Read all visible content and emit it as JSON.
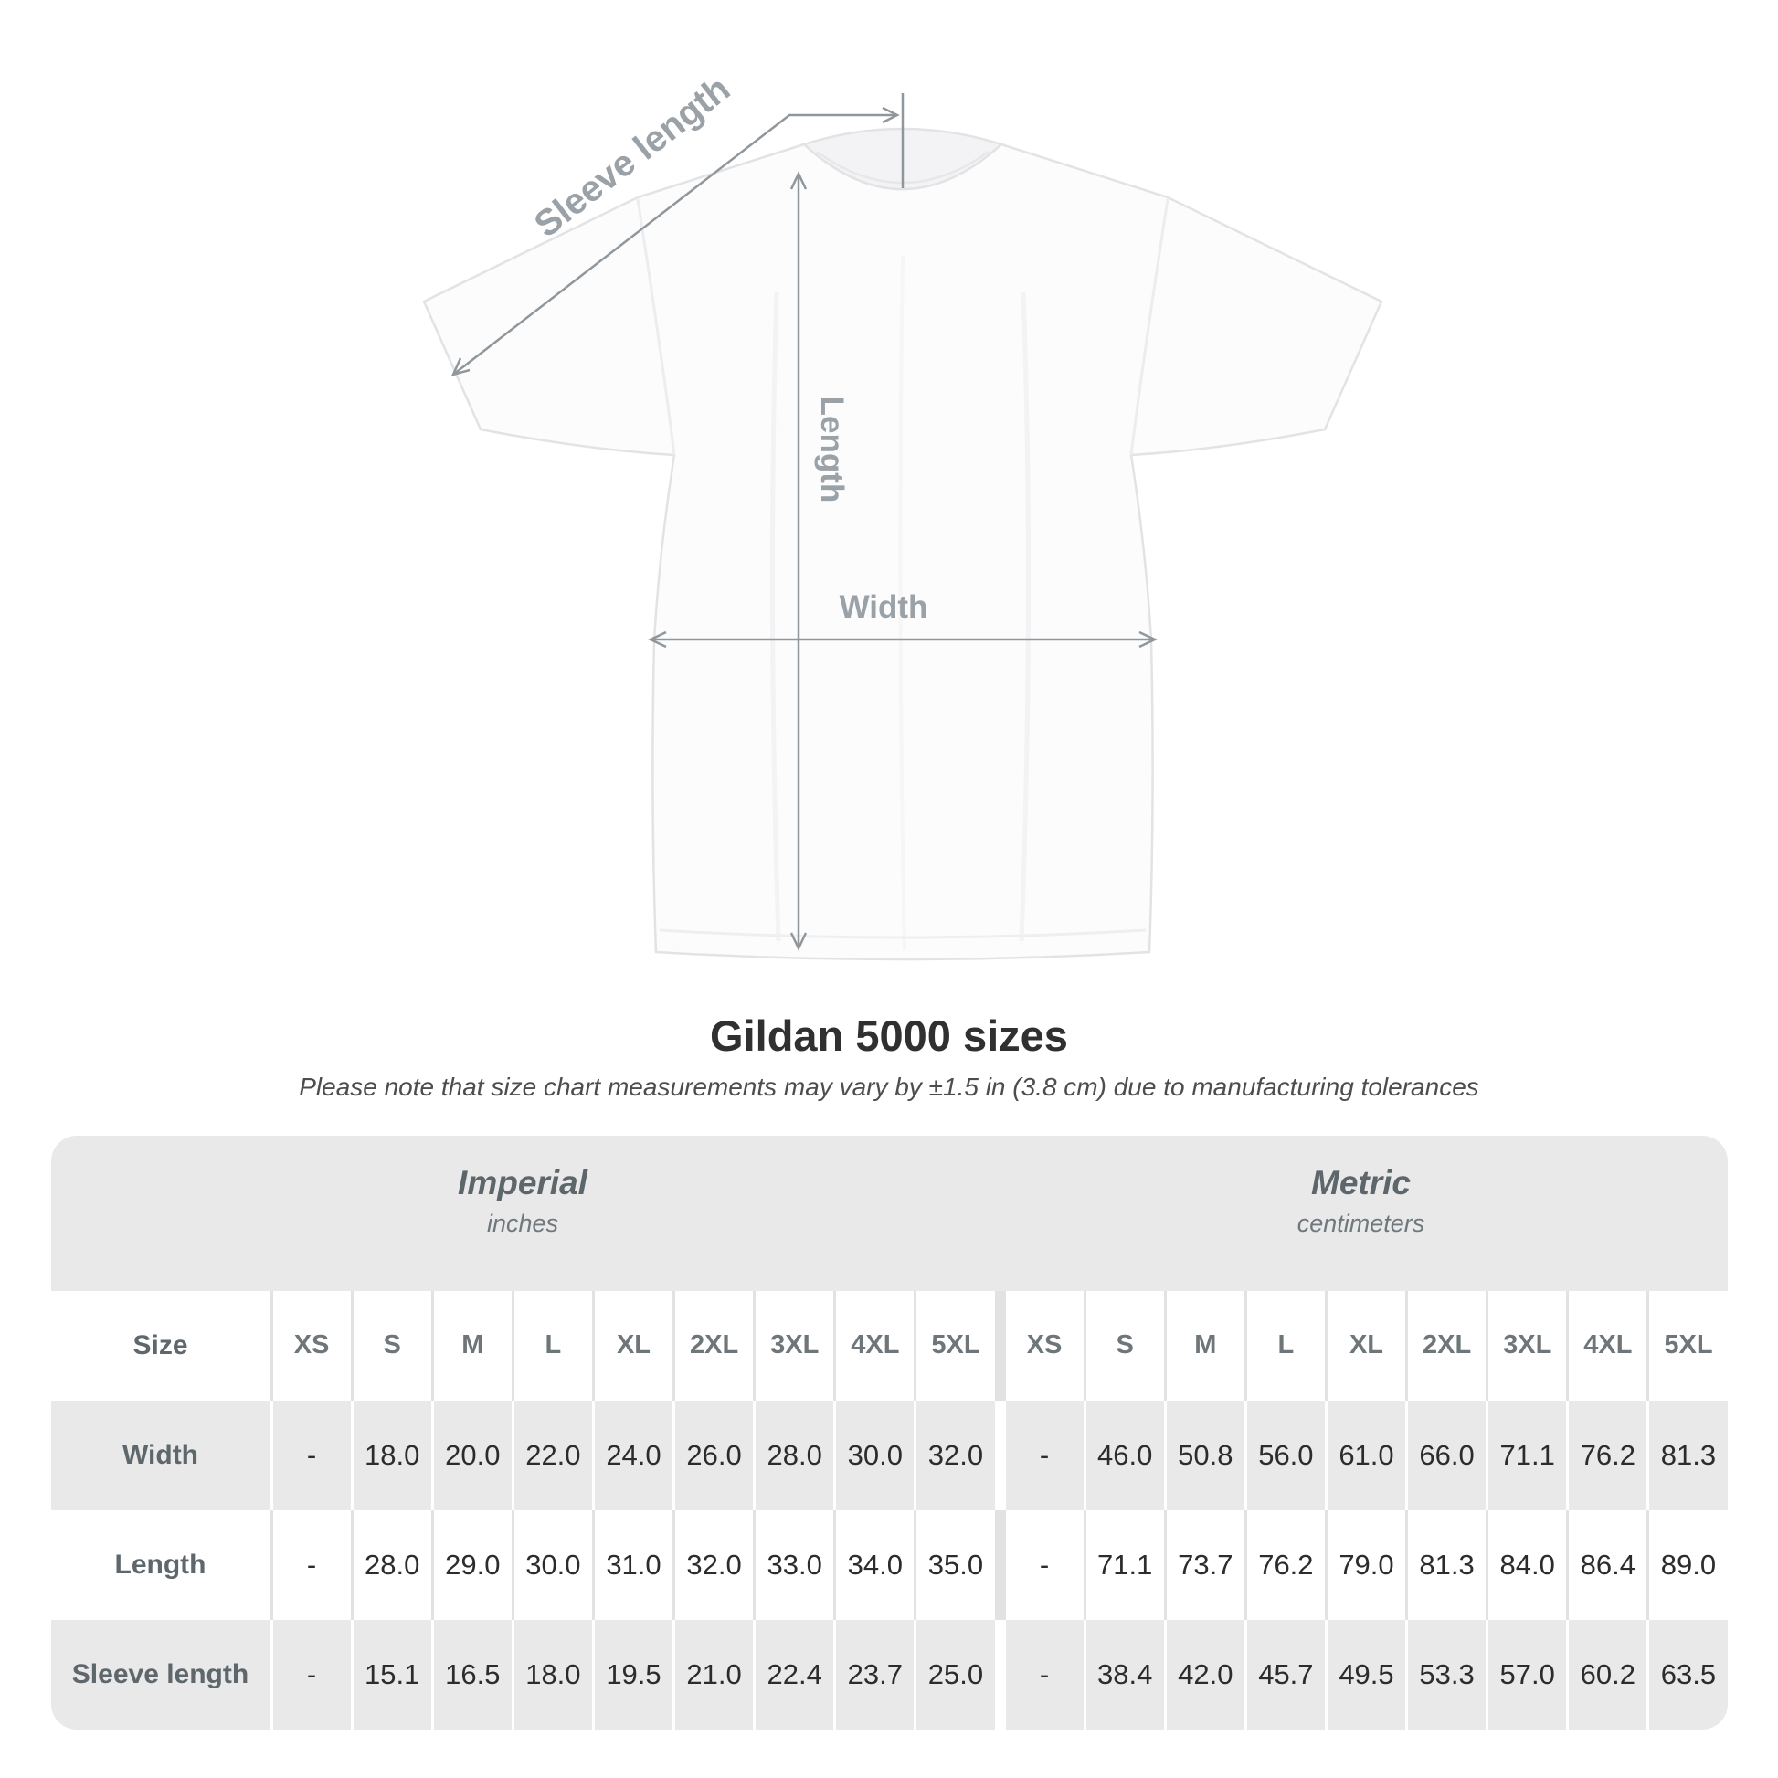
{
  "diagram": {
    "sleeve_label": "Sleeve length",
    "length_label": "Length",
    "width_label": "Width"
  },
  "title": "Gildan 5000 sizes",
  "subtitle": "Please note that size chart measurements may vary by ±1.5 in (3.8 cm) due to manufacturing tolerances",
  "table": {
    "groups": [
      {
        "label": "Imperial",
        "sublabel": "inches"
      },
      {
        "label": "Metric",
        "sublabel": "centimeters"
      }
    ],
    "size_header": "Size",
    "sizes": [
      "XS",
      "S",
      "M",
      "L",
      "XL",
      "2XL",
      "3XL",
      "4XL",
      "5XL"
    ],
    "rows": [
      {
        "label": "Width",
        "imperial": [
          "-",
          "18.0",
          "20.0",
          "22.0",
          "24.0",
          "26.0",
          "28.0",
          "30.0",
          "32.0"
        ],
        "metric": [
          "-",
          "46.0",
          "50.8",
          "56.0",
          "61.0",
          "66.0",
          "71.1",
          "76.2",
          "81.3"
        ]
      },
      {
        "label": "Length",
        "imperial": [
          "-",
          "28.0",
          "29.0",
          "30.0",
          "31.0",
          "32.0",
          "33.0",
          "34.0",
          "35.0"
        ],
        "metric": [
          "-",
          "71.1",
          "73.7",
          "76.2",
          "79.0",
          "81.3",
          "84.0",
          "86.4",
          "89.0"
        ]
      },
      {
        "label": "Sleeve length",
        "imperial": [
          "-",
          "15.1",
          "16.5",
          "18.0",
          "19.5",
          "21.0",
          "22.4",
          "23.7",
          "25.0"
        ],
        "metric": [
          "-",
          "38.4",
          "42.0",
          "45.7",
          "49.5",
          "53.3",
          "57.0",
          "60.2",
          "63.5"
        ]
      }
    ]
  },
  "chart_data": {
    "type": "table",
    "title": "Gildan 5000 sizes",
    "note": "Please note that size chart measurements may vary by ±1.5 in (3.8 cm) due to manufacturing tolerances",
    "unit_groups": [
      {
        "name": "Imperial",
        "unit": "inches"
      },
      {
        "name": "Metric",
        "unit": "centimeters"
      }
    ],
    "columns": [
      "XS",
      "S",
      "M",
      "L",
      "XL",
      "2XL",
      "3XL",
      "4XL",
      "5XL"
    ],
    "rows": [
      {
        "measurement": "Width",
        "imperial_in": [
          null,
          18.0,
          20.0,
          22.0,
          24.0,
          26.0,
          28.0,
          30.0,
          32.0
        ],
        "metric_cm": [
          null,
          46.0,
          50.8,
          56.0,
          61.0,
          66.0,
          71.1,
          76.2,
          81.3
        ]
      },
      {
        "measurement": "Length",
        "imperial_in": [
          null,
          28.0,
          29.0,
          30.0,
          31.0,
          32.0,
          33.0,
          34.0,
          35.0
        ],
        "metric_cm": [
          null,
          71.1,
          73.7,
          76.2,
          79.0,
          81.3,
          84.0,
          86.4,
          89.0
        ]
      },
      {
        "measurement": "Sleeve length",
        "imperial_in": [
          null,
          15.1,
          16.5,
          18.0,
          19.5,
          21.0,
          22.4,
          23.7,
          25.0
        ],
        "metric_cm": [
          null,
          38.4,
          42.0,
          45.7,
          49.5,
          53.3,
          57.0,
          60.2,
          63.5
        ]
      }
    ],
    "colors": {
      "band_gray": "#e9e9e9",
      "separator": "#e2e2e2",
      "data_text": "#2c2c2c",
      "label_text": "#5d676c",
      "arrow_gray": "#8f979c",
      "diagram_label_gray": "#9aa1a7"
    }
  }
}
